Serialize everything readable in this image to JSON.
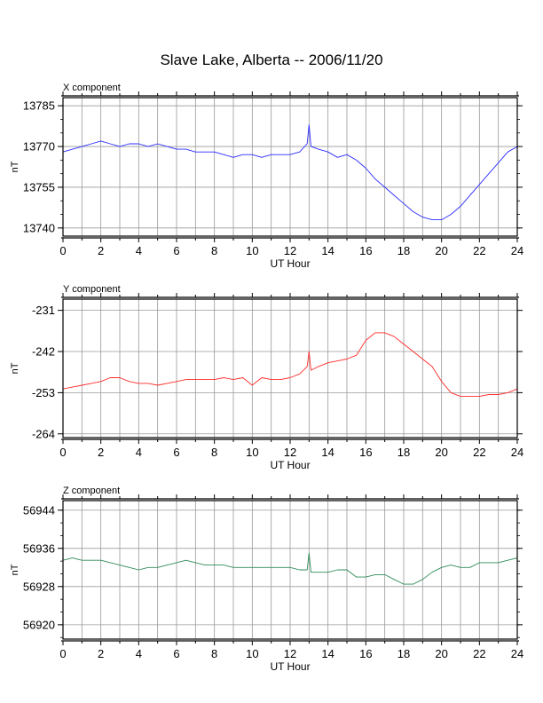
{
  "title": "Slave Lake, Alberta -- 2006/11/20",
  "chart_data": [
    {
      "type": "line",
      "panel_label": "X component",
      "xlabel": "UT Hour",
      "ylabel": "nT",
      "xlim": [
        0,
        24
      ],
      "ylim": [
        13737,
        13788
      ],
      "xticks": [
        0,
        2,
        4,
        6,
        8,
        10,
        12,
        14,
        16,
        18,
        20,
        22,
        24
      ],
      "yticks": [
        13740,
        13755,
        13770,
        13785
      ],
      "grid": true,
      "series": [
        {
          "color": "#2b2bff",
          "x": [
            0,
            0.5,
            1,
            1.5,
            2,
            2.5,
            3,
            3.5,
            4,
            4.5,
            5,
            5.5,
            6,
            6.5,
            7,
            7.5,
            8,
            8.5,
            9,
            9.5,
            10,
            10.5,
            11,
            11.5,
            12,
            12.5,
            12.9,
            13,
            13.1,
            13.5,
            14,
            14.5,
            15,
            15.5,
            16,
            16.5,
            17,
            17.5,
            18,
            18.5,
            19,
            19.5,
            20,
            20.5,
            21,
            21.5,
            22,
            22.5,
            23,
            23.5,
            24
          ],
          "y": [
            13768,
            13769,
            13770,
            13771,
            13772,
            13771,
            13770,
            13771,
            13771,
            13770,
            13771,
            13770,
            13769,
            13769,
            13768,
            13768,
            13768,
            13767,
            13766,
            13767,
            13767,
            13766,
            13767,
            13767,
            13767,
            13768,
            13771,
            13778,
            13770,
            13769,
            13768,
            13766,
            13767,
            13765,
            13762,
            13758,
            13755,
            13752,
            13749,
            13746,
            13744,
            13743,
            13743,
            13745,
            13748,
            13752,
            13756,
            13760,
            13764,
            13768,
            13770
          ]
        }
      ]
    },
    {
      "type": "line",
      "panel_label": "Y component",
      "xlabel": "UT Hour",
      "ylabel": "nT",
      "xlim": [
        0,
        24
      ],
      "ylim": [
        -265,
        -228
      ],
      "xticks": [
        0,
        2,
        4,
        6,
        8,
        10,
        12,
        14,
        16,
        18,
        20,
        22,
        24
      ],
      "yticks": [
        -231,
        -242,
        -253,
        -264
      ],
      "grid": true,
      "series": [
        {
          "color": "#ff2b2b",
          "x": [
            0,
            0.5,
            1,
            1.5,
            2,
            2.5,
            3,
            3.5,
            4,
            4.5,
            5,
            5.5,
            6,
            6.5,
            7,
            7.5,
            8,
            8.5,
            9,
            9.5,
            10,
            10.5,
            11,
            11.5,
            12,
            12.5,
            12.9,
            13,
            13.1,
            13.5,
            14,
            14.5,
            15,
            15.5,
            16,
            16.5,
            17,
            17.5,
            18,
            18.5,
            19,
            19.5,
            20,
            20.5,
            21,
            21.5,
            22,
            22.5,
            23,
            23.5,
            24
          ],
          "y": [
            -252,
            -251.5,
            -251,
            -250.5,
            -250,
            -249,
            -249,
            -250,
            -250.5,
            -250.5,
            -251,
            -250.5,
            -250,
            -249.5,
            -249.5,
            -249.5,
            -249.5,
            -249,
            -249.5,
            -249,
            -251,
            -249,
            -249.5,
            -249.5,
            -249,
            -248,
            -246,
            -242,
            -247,
            -246,
            -245,
            -244.5,
            -244,
            -243,
            -239,
            -237,
            -237,
            -238,
            -240,
            -242,
            -244,
            -246,
            -250,
            -253,
            -254,
            -254,
            -254,
            -253.5,
            -253.5,
            -253,
            -252
          ]
        }
      ]
    },
    {
      "type": "line",
      "panel_label": "Z component",
      "xlabel": "UT Hour",
      "ylabel": "nT",
      "xlim": [
        0,
        24
      ],
      "ylim": [
        56917,
        56946
      ],
      "xticks": [
        0,
        2,
        4,
        6,
        8,
        10,
        12,
        14,
        16,
        18,
        20,
        22,
        24
      ],
      "yticks": [
        56920,
        56928,
        56936,
        56944
      ],
      "grid": true,
      "series": [
        {
          "color": "#2e8b57",
          "x": [
            0,
            0.5,
            1,
            1.5,
            2,
            2.5,
            3,
            3.5,
            4,
            4.5,
            5,
            5.5,
            6,
            6.5,
            7,
            7.5,
            8,
            8.5,
            9,
            9.5,
            10,
            10.5,
            11,
            11.5,
            12,
            12.5,
            12.9,
            13,
            13.1,
            13.5,
            14,
            14.5,
            15,
            15.5,
            16,
            16.5,
            17,
            17.5,
            18,
            18.5,
            19,
            19.5,
            20,
            20.5,
            21,
            21.5,
            22,
            22.5,
            23,
            23.5,
            24
          ],
          "y": [
            56933.5,
            56934,
            56933.5,
            56933.5,
            56933.5,
            56933,
            56932.5,
            56932,
            56931.5,
            56932,
            56932,
            56932.5,
            56933,
            56933.5,
            56933,
            56932.5,
            56932.5,
            56932.5,
            56932,
            56932,
            56932,
            56932,
            56932,
            56932,
            56932,
            56931.5,
            56931.5,
            56935,
            56931,
            56931,
            56931,
            56931.5,
            56931.5,
            56930,
            56930,
            56930.5,
            56930.5,
            56929.5,
            56928.5,
            56928.5,
            56929.5,
            56931,
            56932,
            56932.5,
            56932,
            56932,
            56933,
            56933,
            56933,
            56933.5,
            56934
          ]
        }
      ]
    }
  ]
}
